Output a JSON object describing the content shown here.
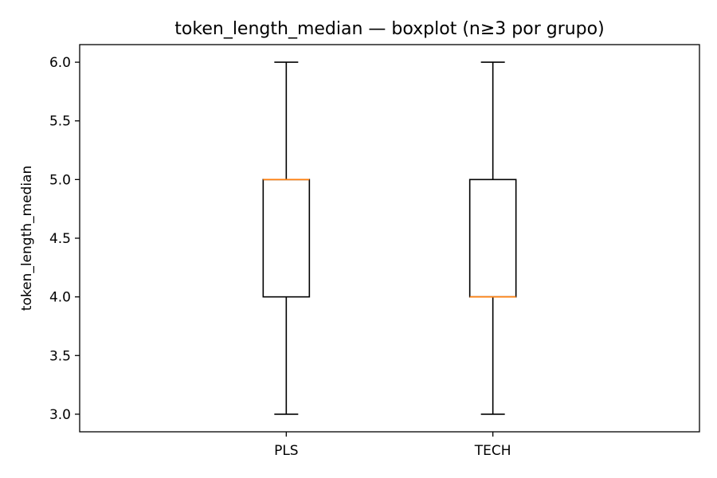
{
  "chart_data": {
    "type": "boxplot",
    "title": "token_length_median — boxplot (n≥3 por grupo)",
    "xlabel": "",
    "ylabel": "token_length_median",
    "ylim": [
      2.85,
      6.15
    ],
    "yticks": [
      3.0,
      3.5,
      4.0,
      4.5,
      5.0,
      5.5,
      6.0
    ],
    "ytick_labels": [
      "3.0",
      "3.5",
      "4.0",
      "4.5",
      "5.0",
      "5.5",
      "6.0"
    ],
    "categories": [
      "PLS",
      "TECH"
    ],
    "boxes": [
      {
        "category": "PLS",
        "whisker_low": 3.0,
        "q1": 4.0,
        "median": 5.0,
        "q3": 5.0,
        "whisker_high": 6.0
      },
      {
        "category": "TECH",
        "whisker_low": 3.0,
        "q1": 4.0,
        "median": 4.0,
        "q3": 5.0,
        "whisker_high": 6.0
      }
    ],
    "grid": false,
    "colors": {
      "box": "#000000",
      "median": "#ff7f0e"
    }
  }
}
